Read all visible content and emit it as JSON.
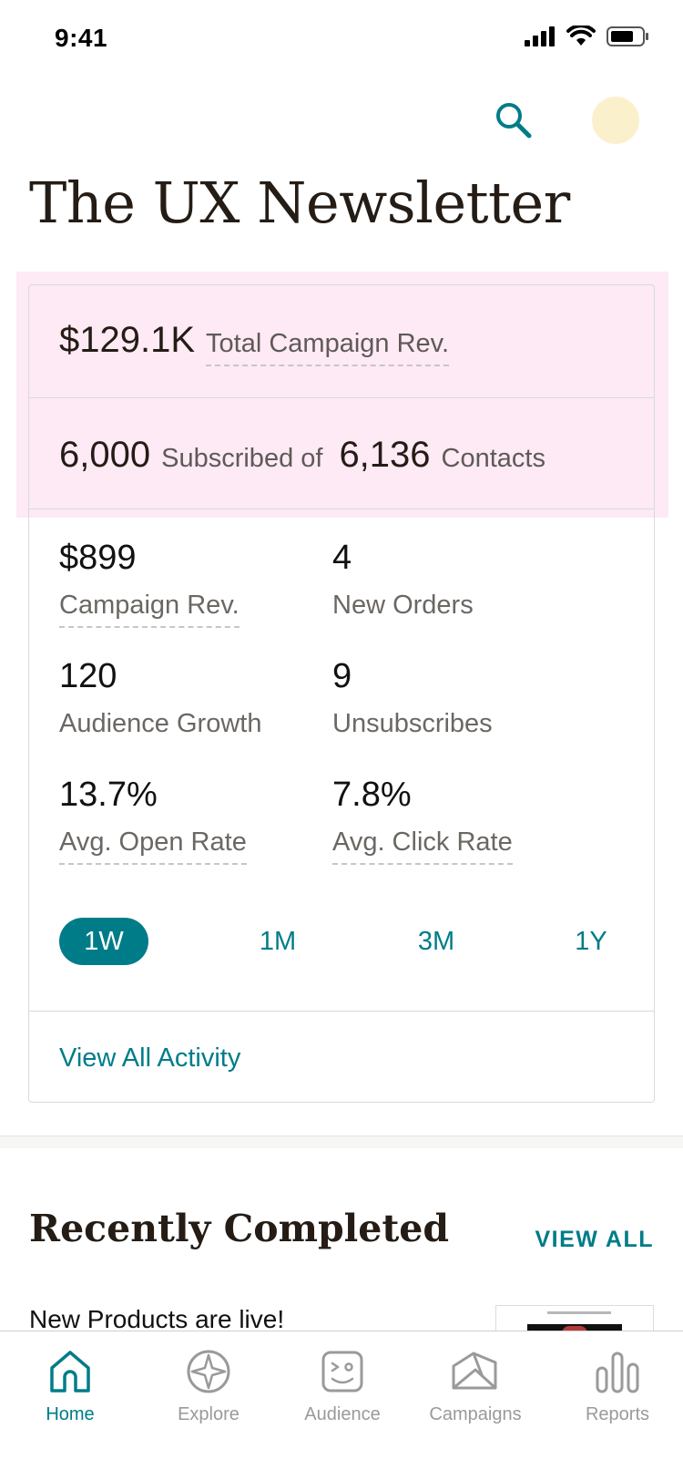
{
  "status_bar": {
    "time": "9:41"
  },
  "header": {
    "title": "The UX Newsletter"
  },
  "summary": {
    "total_rev_value": "$129.1K",
    "total_rev_label": "Total Campaign Rev.",
    "subscribed_value": "6,000",
    "subscribed_label": "Subscribed of",
    "contacts_value": "6,136",
    "contacts_label": "Contacts"
  },
  "metrics": [
    {
      "value": "$899",
      "label": "Campaign Rev."
    },
    {
      "value": "4",
      "label": "New Orders"
    },
    {
      "value": "120",
      "label": "Audience Growth"
    },
    {
      "value": "9",
      "label": "Unsubscribes"
    },
    {
      "value": "13.7%",
      "label": "Avg. Open Rate"
    },
    {
      "value": "7.8%",
      "label": "Avg. Click Rate"
    }
  ],
  "ranges": [
    {
      "label": "1W",
      "selected": true
    },
    {
      "label": "1M",
      "selected": false
    },
    {
      "label": "3M",
      "selected": false
    },
    {
      "label": "1Y",
      "selected": false
    }
  ],
  "view_all_activity": "View All Activity",
  "recent": {
    "title": "Recently Completed",
    "view_all": "VIEW ALL",
    "items": [
      {
        "title": "New Products are live!"
      }
    ]
  },
  "tabs": [
    {
      "label": "Home",
      "icon": "home-icon",
      "active": true
    },
    {
      "label": "Explore",
      "icon": "compass-icon",
      "active": false
    },
    {
      "label": "Audience",
      "icon": "audience-icon",
      "active": false
    },
    {
      "label": "Campaigns",
      "icon": "campaigns-icon",
      "active": false
    },
    {
      "label": "Reports",
      "icon": "reports-icon",
      "active": false
    }
  ],
  "colors": {
    "accent": "#007c89",
    "highlight": "#fdeaf5",
    "avatar": "#fbf0cc",
    "text_dark": "#241c15"
  }
}
